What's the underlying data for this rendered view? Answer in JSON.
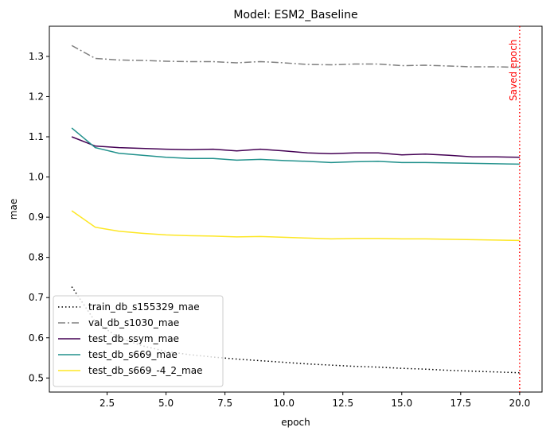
{
  "chart_data": {
    "type": "line",
    "title": "Model: ESM2_Baseline",
    "xlabel": "epoch",
    "ylabel": "mae",
    "xlim": [
      0.05,
      20.95
    ],
    "ylim": [
      0.465,
      1.375
    ],
    "x_ticks": [
      2.5,
      5.0,
      7.5,
      10.0,
      12.5,
      15.0,
      17.5,
      20.0
    ],
    "x_tick_labels": [
      "2.5",
      "5.0",
      "7.5",
      "10.0",
      "12.5",
      "15.0",
      "17.5",
      "20.0"
    ],
    "y_ticks": [
      0.5,
      0.6,
      0.7,
      0.8,
      0.9,
      1.0,
      1.1,
      1.2,
      1.3
    ],
    "y_tick_labels": [
      "0.5",
      "0.6",
      "0.7",
      "0.8",
      "0.9",
      "1.0",
      "1.1",
      "1.2",
      "1.3"
    ],
    "grid": false,
    "legend_position": "lower-left",
    "x": [
      1,
      2,
      3,
      4,
      5,
      6,
      7,
      8,
      9,
      10,
      11,
      12,
      13,
      14,
      15,
      16,
      17,
      18,
      19,
      20
    ],
    "series": [
      {
        "name": "train_db_s155329_mae",
        "color": "#000000",
        "dash": "dotted",
        "values": [
          0.727,
          0.64,
          0.6,
          0.58,
          0.566,
          0.558,
          0.552,
          0.547,
          0.543,
          0.539,
          0.535,
          0.532,
          0.529,
          0.527,
          0.524,
          0.522,
          0.519,
          0.517,
          0.515,
          0.513
        ]
      },
      {
        "name": "val_db_s1030_mae",
        "color": "#808080",
        "dash": "dashdot",
        "values": [
          1.327,
          1.295,
          1.291,
          1.29,
          1.288,
          1.287,
          1.287,
          1.284,
          1.287,
          1.284,
          1.28,
          1.279,
          1.281,
          1.281,
          1.277,
          1.278,
          1.276,
          1.274,
          1.274,
          1.273
        ]
      },
      {
        "name": "test_db_ssym_mae",
        "color": "#440154",
        "dash": "solid",
        "values": [
          1.1,
          1.077,
          1.073,
          1.071,
          1.069,
          1.068,
          1.069,
          1.065,
          1.069,
          1.065,
          1.06,
          1.058,
          1.06,
          1.06,
          1.055,
          1.057,
          1.054,
          1.05,
          1.05,
          1.049
        ]
      },
      {
        "name": "test_db_s669_mae",
        "color": "#21918c",
        "dash": "solid",
        "values": [
          1.122,
          1.073,
          1.059,
          1.054,
          1.049,
          1.046,
          1.046,
          1.042,
          1.044,
          1.041,
          1.039,
          1.036,
          1.038,
          1.039,
          1.036,
          1.036,
          1.035,
          1.034,
          1.033,
          1.032
        ]
      },
      {
        "name": "test_db_s669_-4_2_mae",
        "color": "#fde725",
        "dash": "solid",
        "values": [
          0.916,
          0.875,
          0.865,
          0.86,
          0.856,
          0.854,
          0.853,
          0.851,
          0.852,
          0.85,
          0.848,
          0.846,
          0.847,
          0.847,
          0.846,
          0.846,
          0.845,
          0.844,
          0.843,
          0.842
        ]
      }
    ],
    "annotations": [
      {
        "type": "vline",
        "x": 20,
        "color": "#ff0000",
        "dash": "dotted",
        "label": "Saved epoch"
      }
    ]
  }
}
